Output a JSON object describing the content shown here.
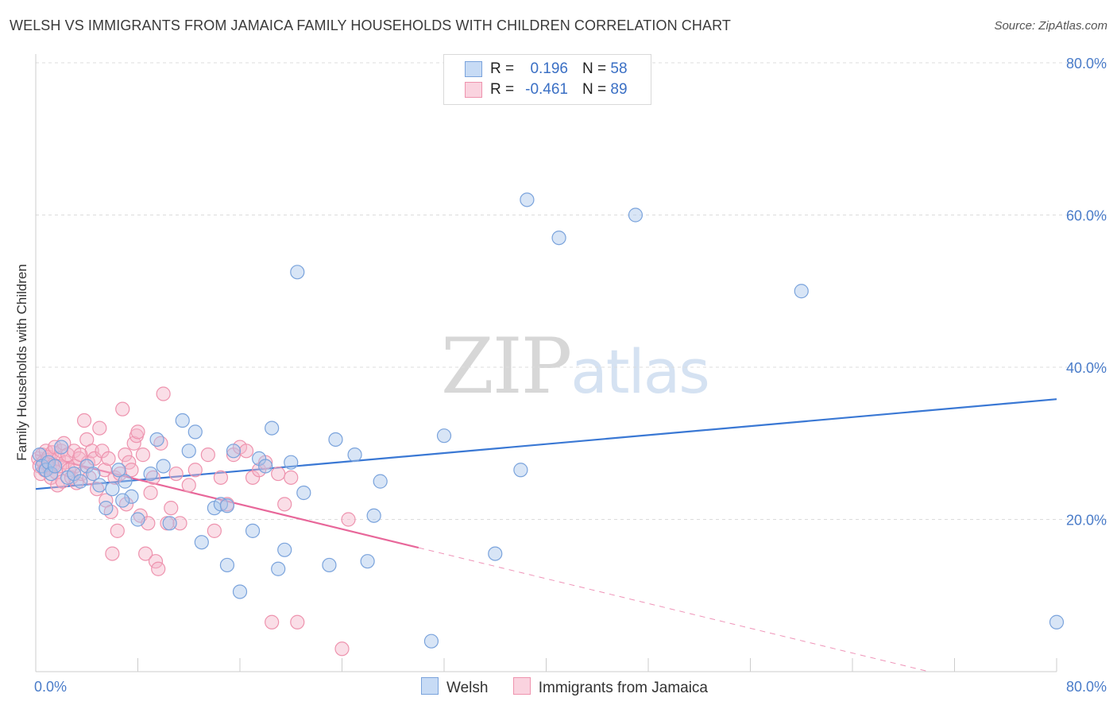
{
  "title": "WELSH VS IMMIGRANTS FROM JAMAICA FAMILY HOUSEHOLDS WITH CHILDREN CORRELATION CHART",
  "source": "Source: ZipAtlas.com",
  "watermark": {
    "zip": "ZIP",
    "atlas": "atlas"
  },
  "legend": {
    "r_label": "R =",
    "n_label": "N =",
    "rows": [
      {
        "r": "0.196",
        "n": "58",
        "color": "#a8c5ec"
      },
      {
        "r": "-0.461",
        "n": "89",
        "color": "#f5b6c9"
      }
    ]
  },
  "bottom_legend": [
    {
      "label": "Welsh",
      "color": "#a8c5ec"
    },
    {
      "label": "Immigrants from Jamaica",
      "color": "#f5b6c9"
    }
  ],
  "colors": {
    "welsh_fill": "#a8c5ec",
    "welsh_stroke": "#7aa3dc",
    "welsh_line": "#3a78d4",
    "jam_fill": "#f5b6c9",
    "jam_stroke": "#ee93ae",
    "jam_line": "#e8679a"
  },
  "chart_data": {
    "type": "scatter",
    "title": "WELSH VS IMMIGRANTS FROM JAMAICA FAMILY HOUSEHOLDS WITH CHILDREN CORRELATION CHART",
    "xlabel": "",
    "ylabel": "Family Households with Children",
    "xlim": [
      0,
      80
    ],
    "ylim": [
      0,
      80
    ],
    "x_tick_labels": [
      "0.0%",
      "80.0%"
    ],
    "y_ticks": [
      20,
      40,
      60,
      80
    ],
    "y_tick_labels": [
      "20.0%",
      "40.0%",
      "60.0%",
      "80.0%"
    ],
    "series": [
      {
        "name": "Welsh",
        "R": 0.196,
        "N": 58,
        "trend": {
          "x": [
            0,
            80
          ],
          "y": [
            24.0,
            35.8
          ],
          "dashed_from": null
        },
        "points": [
          [
            0.3,
            28.5
          ],
          [
            0.5,
            27.0
          ],
          [
            0.8,
            26.5
          ],
          [
            1.0,
            27.5
          ],
          [
            1.2,
            26.0
          ],
          [
            1.5,
            27.0
          ],
          [
            2.0,
            29.5
          ],
          [
            2.5,
            25.5
          ],
          [
            3.0,
            26.0
          ],
          [
            3.5,
            25.0
          ],
          [
            4.0,
            27.0
          ],
          [
            4.5,
            26.0
          ],
          [
            5.0,
            24.5
          ],
          [
            5.5,
            21.5
          ],
          [
            6.0,
            24.0
          ],
          [
            6.5,
            26.5
          ],
          [
            7.0,
            25.0
          ],
          [
            7.5,
            23.0
          ],
          [
            8.0,
            20.0
          ],
          [
            9.0,
            26.0
          ],
          [
            10.0,
            27.0
          ],
          [
            10.5,
            19.5
          ],
          [
            11.5,
            33.0
          ],
          [
            12.5,
            31.5
          ],
          [
            12.0,
            29.0
          ],
          [
            13.0,
            17.0
          ],
          [
            14.0,
            21.5
          ],
          [
            14.5,
            22.0
          ],
          [
            15.0,
            21.8
          ],
          [
            15.0,
            14.0
          ],
          [
            15.5,
            29.0
          ],
          [
            16.0,
            10.5
          ],
          [
            17.0,
            18.5
          ],
          [
            17.5,
            28.0
          ],
          [
            18.0,
            27.0
          ],
          [
            18.5,
            32.0
          ],
          [
            19.0,
            13.5
          ],
          [
            19.5,
            16.0
          ],
          [
            20.0,
            27.5
          ],
          [
            20.5,
            52.5
          ],
          [
            21.0,
            23.5
          ],
          [
            23.0,
            14.0
          ],
          [
            23.5,
            30.5
          ],
          [
            25.0,
            28.5
          ],
          [
            26.0,
            14.5
          ],
          [
            26.5,
            20.5
          ],
          [
            27.0,
            25.0
          ],
          [
            31.0,
            4.0
          ],
          [
            32.0,
            31.0
          ],
          [
            36.0,
            15.5
          ],
          [
            38.0,
            26.5
          ],
          [
            38.5,
            62.0
          ],
          [
            41.0,
            57.0
          ],
          [
            47.0,
            60.0
          ],
          [
            60.0,
            50.0
          ],
          [
            80.0,
            6.5
          ],
          [
            9.5,
            30.5
          ],
          [
            6.8,
            22.5
          ]
        ]
      },
      {
        "name": "Immigrants from Jamaica",
        "R": -0.461,
        "N": 89,
        "trend": {
          "x": [
            0,
            70
          ],
          "y": [
            28.5,
            0
          ],
          "dashed_from": 30
        },
        "points": [
          [
            0.2,
            28.0
          ],
          [
            0.3,
            27.0
          ],
          [
            0.4,
            26.0
          ],
          [
            0.5,
            28.5
          ],
          [
            0.6,
            27.5
          ],
          [
            0.7,
            26.5
          ],
          [
            0.8,
            29.0
          ],
          [
            0.9,
            27.8
          ],
          [
            1.0,
            28.2
          ],
          [
            1.1,
            26.8
          ],
          [
            1.2,
            25.5
          ],
          [
            1.3,
            28.8
          ],
          [
            1.4,
            27.2
          ],
          [
            1.5,
            29.5
          ],
          [
            1.6,
            26.2
          ],
          [
            1.7,
            24.5
          ],
          [
            1.8,
            28.0
          ],
          [
            1.9,
            27.0
          ],
          [
            2.0,
            29.0
          ],
          [
            2.1,
            25.0
          ],
          [
            2.2,
            30.0
          ],
          [
            2.3,
            27.5
          ],
          [
            2.5,
            28.5
          ],
          [
            2.6,
            26.5
          ],
          [
            2.8,
            25.5
          ],
          [
            3.0,
            29.0
          ],
          [
            3.1,
            27.0
          ],
          [
            3.2,
            24.8
          ],
          [
            3.4,
            28.0
          ],
          [
            3.6,
            26.0
          ],
          [
            3.8,
            33.0
          ],
          [
            4.0,
            30.5
          ],
          [
            4.1,
            27.5
          ],
          [
            4.2,
            25.5
          ],
          [
            4.4,
            29.0
          ],
          [
            4.6,
            28.0
          ],
          [
            4.8,
            24.0
          ],
          [
            5.0,
            32.0
          ],
          [
            5.2,
            29.0
          ],
          [
            5.4,
            26.5
          ],
          [
            5.5,
            22.5
          ],
          [
            5.7,
            28.0
          ],
          [
            5.9,
            21.0
          ],
          [
            6.0,
            15.5
          ],
          [
            6.2,
            25.5
          ],
          [
            6.4,
            18.5
          ],
          [
            6.6,
            26.0
          ],
          [
            6.8,
            34.5
          ],
          [
            7.0,
            28.5
          ],
          [
            7.1,
            22.0
          ],
          [
            7.3,
            27.5
          ],
          [
            7.5,
            26.5
          ],
          [
            7.7,
            30.0
          ],
          [
            7.9,
            31.0
          ],
          [
            8.2,
            20.5
          ],
          [
            8.4,
            28.5
          ],
          [
            8.6,
            15.5
          ],
          [
            8.8,
            19.5
          ],
          [
            9.0,
            23.5
          ],
          [
            9.2,
            25.5
          ],
          [
            9.4,
            14.5
          ],
          [
            9.6,
            13.5
          ],
          [
            9.8,
            30.0
          ],
          [
            10.0,
            36.5
          ],
          [
            10.3,
            19.5
          ],
          [
            10.6,
            21.5
          ],
          [
            11.0,
            26.0
          ],
          [
            11.3,
            19.5
          ],
          [
            12.0,
            24.5
          ],
          [
            12.5,
            26.5
          ],
          [
            13.5,
            28.5
          ],
          [
            14.0,
            18.5
          ],
          [
            14.5,
            25.5
          ],
          [
            15.0,
            22.0
          ],
          [
            15.5,
            28.5
          ],
          [
            16.0,
            29.5
          ],
          [
            16.5,
            29.0
          ],
          [
            17.0,
            25.5
          ],
          [
            17.5,
            26.5
          ],
          [
            18.0,
            27.5
          ],
          [
            18.5,
            6.5
          ],
          [
            19.0,
            26.0
          ],
          [
            19.5,
            22.0
          ],
          [
            20.0,
            25.5
          ],
          [
            20.5,
            6.5
          ],
          [
            24.0,
            3.0
          ],
          [
            24.5,
            20.0
          ],
          [
            8.0,
            31.5
          ],
          [
            3.5,
            28.5
          ]
        ]
      }
    ]
  },
  "y_axis_title": "Family Households with Children"
}
